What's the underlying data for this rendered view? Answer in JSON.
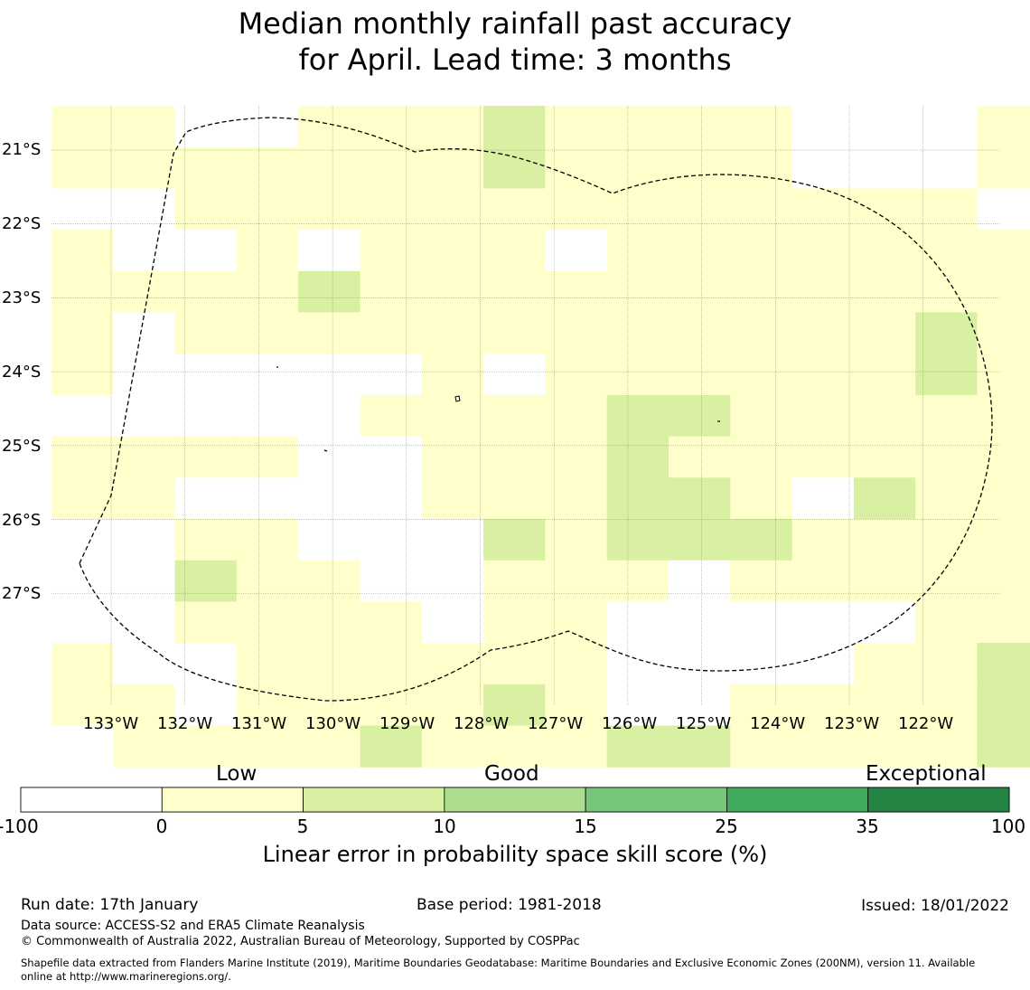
{
  "title": {
    "line1": "Median monthly rainfall past accuracy",
    "line2": "for April. Lead time: 3 months"
  },
  "map": {
    "lon_labels": [
      "133°W",
      "132°W",
      "131°W",
      "130°W",
      "129°W",
      "128°W",
      "127°W",
      "126°W",
      "125°W",
      "124°W",
      "123°W",
      "122°W"
    ],
    "lat_labels": [
      "21°S",
      "22°S",
      "23°S",
      "24°S",
      "25°S",
      "26°S",
      "27°S"
    ],
    "grid_category_rows": [
      [
        "L",
        "L",
        "W",
        "W",
        "L",
        "L",
        "L",
        "G",
        "L",
        "L",
        "L",
        "L",
        "W",
        "W",
        "W",
        "L"
      ],
      [
        "L",
        "L",
        "L",
        "L",
        "L",
        "L",
        "L",
        "G",
        "L",
        "L",
        "L",
        "L",
        "W",
        "W",
        "W",
        "L"
      ],
      [
        "W",
        "W",
        "L",
        "L",
        "L",
        "L",
        "L",
        "L",
        "L",
        "L",
        "L",
        "L",
        "L",
        "L",
        "L",
        "W"
      ],
      [
        "L",
        "W",
        "W",
        "L",
        "W",
        "L",
        "L",
        "L",
        "W",
        "L",
        "L",
        "L",
        "L",
        "L",
        "L",
        "L"
      ],
      [
        "L",
        "L",
        "L",
        "L",
        "G",
        "L",
        "L",
        "L",
        "L",
        "L",
        "L",
        "L",
        "L",
        "L",
        "L",
        "L"
      ],
      [
        "L",
        "W",
        "L",
        "L",
        "L",
        "L",
        "L",
        "L",
        "L",
        "L",
        "L",
        "L",
        "L",
        "L",
        "G",
        "L"
      ],
      [
        "L",
        "W",
        "W",
        "W",
        "W",
        "W",
        "L",
        "W",
        "L",
        "L",
        "L",
        "L",
        "L",
        "L",
        "G",
        "L"
      ],
      [
        "W",
        "W",
        "W",
        "W",
        "W",
        "L",
        "L",
        "L",
        "L",
        "G",
        "G",
        "L",
        "L",
        "L",
        "L",
        "L"
      ],
      [
        "L",
        "L",
        "L",
        "L",
        "W",
        "W",
        "L",
        "L",
        "L",
        "G",
        "L",
        "L",
        "L",
        "L",
        "L",
        "L"
      ],
      [
        "L",
        "L",
        "W",
        "W",
        "W",
        "W",
        "L",
        "L",
        "L",
        "G",
        "G",
        "L",
        "W",
        "G",
        "L",
        "L"
      ],
      [
        "W",
        "W",
        "L",
        "L",
        "W",
        "W",
        "W",
        "G",
        "L",
        "G",
        "G",
        "G",
        "L",
        "L",
        "L",
        "L"
      ],
      [
        "W",
        "W",
        "G",
        "L",
        "L",
        "W",
        "W",
        "L",
        "L",
        "L",
        "W",
        "L",
        "L",
        "L",
        "L",
        "L"
      ],
      [
        "W",
        "W",
        "L",
        "L",
        "L",
        "L",
        "W",
        "L",
        "L",
        "W",
        "W",
        "W",
        "W",
        "W",
        "L",
        "L"
      ],
      [
        "L",
        "W",
        "W",
        "L",
        "L",
        "L",
        "L",
        "L",
        "L",
        "W",
        "W",
        "W",
        "W",
        "L",
        "L",
        "G"
      ],
      [
        "L",
        "L",
        "W",
        "L",
        "L",
        "L",
        "L",
        "G",
        "L",
        "W",
        "W",
        "L",
        "L",
        "L",
        "L",
        "G"
      ],
      [
        "W",
        "L",
        "L",
        "L",
        "L",
        "G",
        "L",
        "L",
        "L",
        "G",
        "G",
        "L",
        "L",
        "L",
        "L",
        "G"
      ]
    ]
  },
  "legend": {
    "categories": [
      "Low",
      "Good",
      "Exceptional"
    ],
    "ticks": [
      "-100",
      "0",
      "5",
      "10",
      "15",
      "25",
      "35",
      "100"
    ],
    "colors": [
      "#ffffff",
      "#ffffcc",
      "#d9f0a3",
      "#addd8e",
      "#78c679",
      "#41ab5d",
      "#238443"
    ],
    "axis_label": "Linear error in probability space skill score (%)"
  },
  "footer": {
    "run_date": "Run date: 17th January",
    "base_period": "Base period: 1981-2018",
    "issued": "Issued: 18/01/2022",
    "data_source": "Data source: ACCESS-S2 and ERA5 Climate Reanalysis",
    "copyright": "© Commonwealth of Australia 2022, Australian Bureau of Meteorology, Supported by COSPPac",
    "shapefile_line1": "Shapefile data extracted from Flanders Marine Institute (2019), Maritime Boundaries Geodatabase: Maritime Boundaries and Exclusive Economic Zones (200NM), version 11. Available",
    "shapefile_line2": "online at http://www.marineregions.org/."
  }
}
